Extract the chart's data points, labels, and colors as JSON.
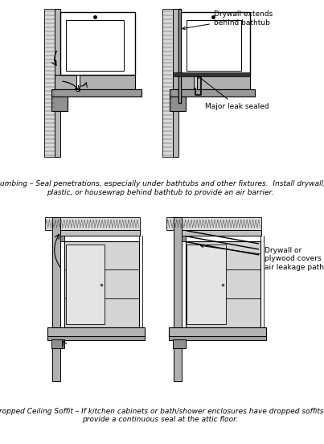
{
  "bg_color": "#ffffff",
  "line_color": "#000000",
  "gray_light": "#c8c8c8",
  "gray_mid": "#a0a0a0",
  "gray_dark": "#787878",
  "title_plumbing": "Plumbing – Seal penetrations, especially under bathtubs and other fixtures.  Install drywall,\nplastic, or housewrap behind bathtub to provide an air barrier.",
  "title_soffit": "Dropped Ceiling Soffit – If kitchen cabinets or bath/shower enclosures have dropped soffits,\nprovide a continuous seal at the attic floor.",
  "label_drywall_extends": "Drywall extends\nbehind bathtub",
  "label_major_leak": "Major leak sealed",
  "label_drywall_covers": "Drywall or\nplywood covers\nair leakage path",
  "fig_width": 4.03,
  "fig_height": 5.52,
  "dpi": 100
}
